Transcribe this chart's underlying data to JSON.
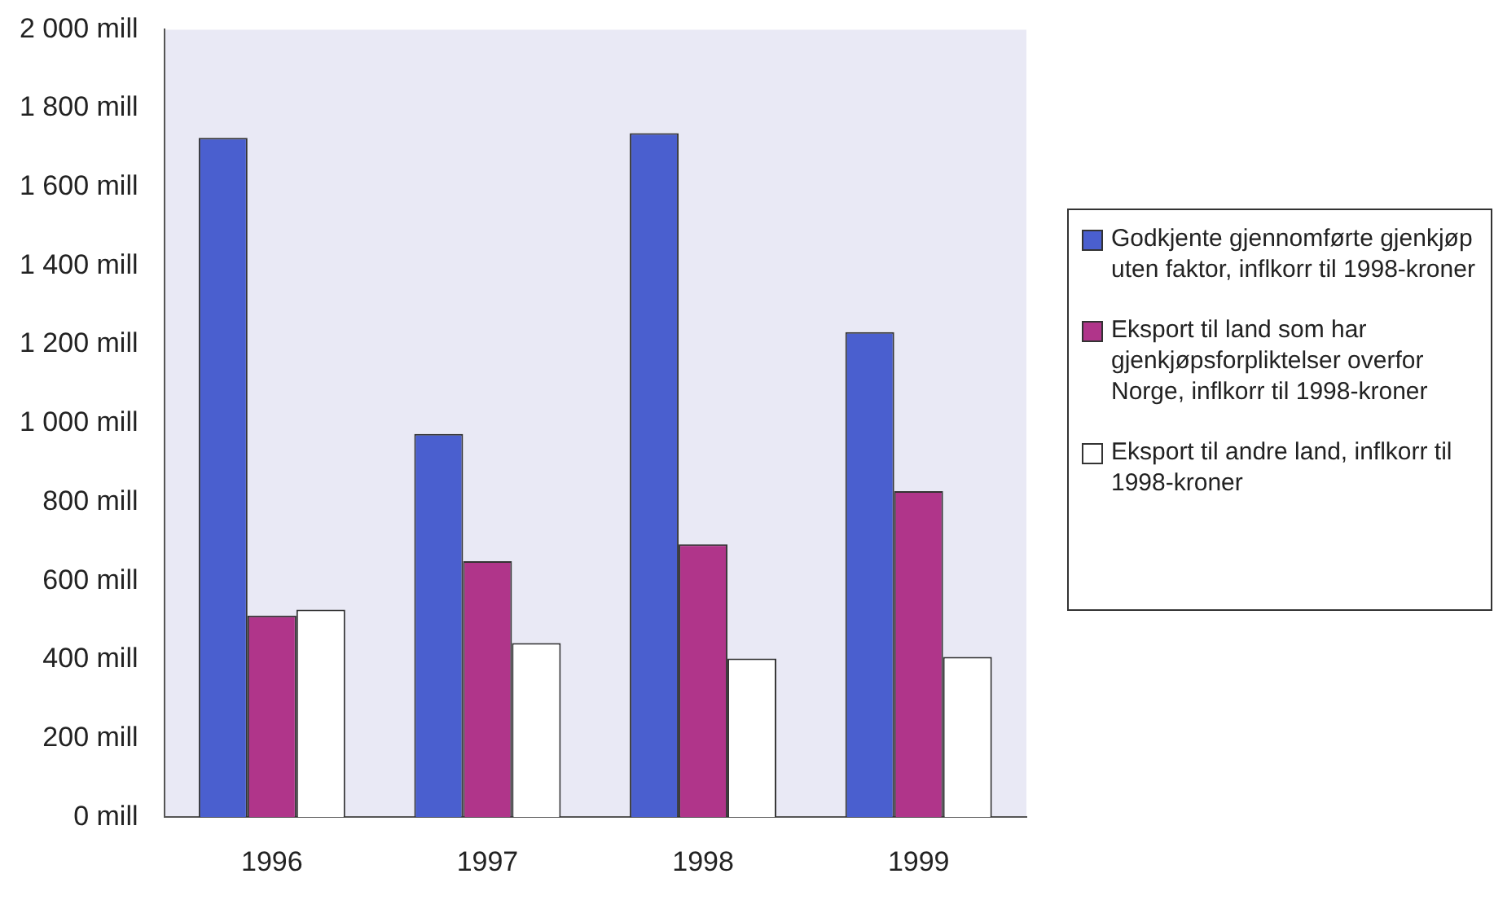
{
  "chart_data": {
    "type": "bar",
    "categories": [
      "1996",
      "1997",
      "1998",
      "1999"
    ],
    "series": [
      {
        "name": "Godkjente gjennomførte gjenkjøp uten faktor, inflkorr til 1998-kroner",
        "color": "#4a5fcf",
        "values": [
          1725,
          973,
          1737,
          1232
        ]
      },
      {
        "name": "Eksport til land som har gjenkjøpsforpliktelser overfor Norge, inflkorr til 1998-kroner",
        "color": "#b0358a",
        "values": [
          512,
          650,
          693,
          828
        ]
      },
      {
        "name": "Eksport til andre land, inflkorr til 1998-kroner",
        "color": "#ffffff",
        "values": [
          527,
          442,
          403,
          407
        ]
      }
    ],
    "ylim": [
      0,
      2000
    ],
    "yticks": [
      {
        "value": 0,
        "label": "0 mill"
      },
      {
        "value": 200,
        "label": "200 mill"
      },
      {
        "value": 400,
        "label": "400 mill"
      },
      {
        "value": 600,
        "label": "600 mill"
      },
      {
        "value": 800,
        "label": "800 mill"
      },
      {
        "value": 1000,
        "label": "1 000 mill"
      },
      {
        "value": 1200,
        "label": "1 200 mill"
      },
      {
        "value": 1400,
        "label": "1 400 mill"
      },
      {
        "value": 1600,
        "label": "1 600 mill"
      },
      {
        "value": 1800,
        "label": "1 800 mill"
      },
      {
        "value": 2000,
        "label": "2 000 mill"
      }
    ],
    "grid": false,
    "legend": "right"
  }
}
